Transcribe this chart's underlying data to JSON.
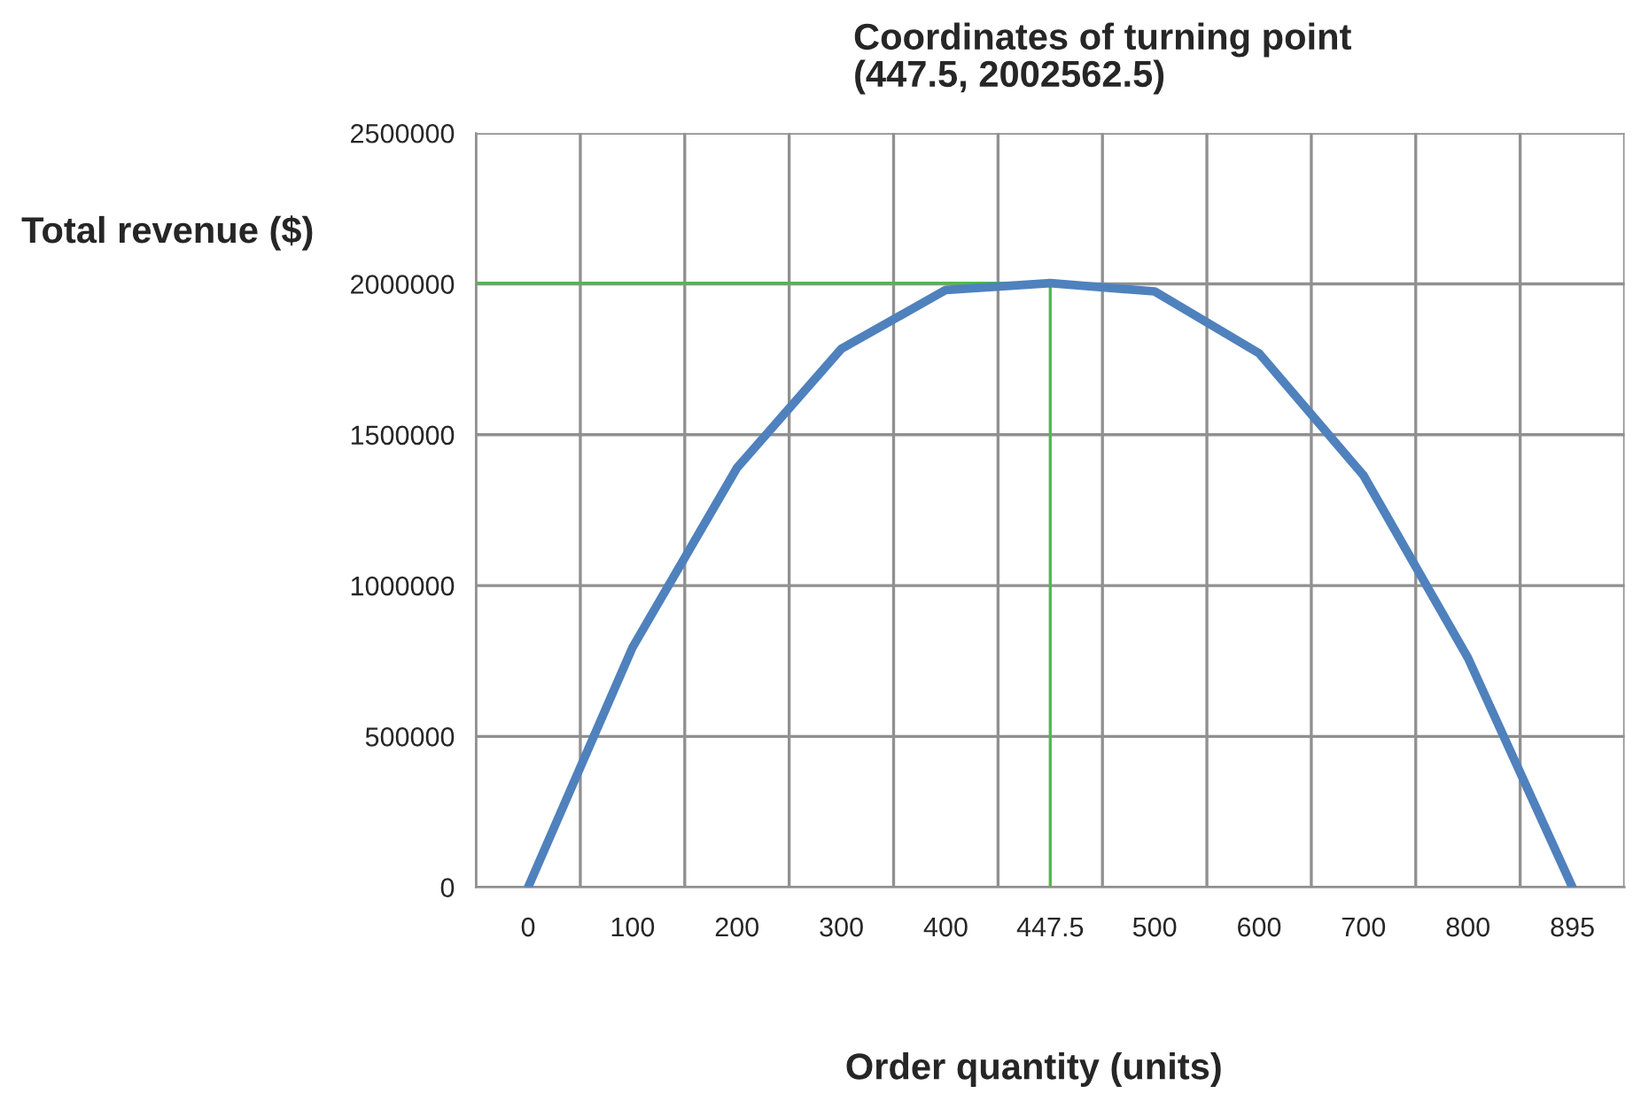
{
  "chart_data": {
    "type": "line",
    "title": "Coordinates of turning point\n(447.5, 2002562.5)",
    "xlabel": "Order quantity (units)",
    "ylabel": "Total revenue ($)",
    "categories": [
      "0",
      "100",
      "200",
      "300",
      "400",
      "447.5",
      "500",
      "600",
      "700",
      "800",
      "895"
    ],
    "series": [
      {
        "color": "#4f81bd",
        "values": [
          0,
          795000,
          1390000,
          1785000,
          1980000,
          2002562.5,
          1975000,
          1770000,
          1365000,
          760000,
          0
        ]
      }
    ],
    "ylim": [
      0,
      2500000
    ],
    "yticks": [
      0,
      500000,
      1000000,
      1500000,
      2000000,
      2500000
    ],
    "grid": true,
    "marker": "none",
    "line_style": "solid",
    "ref_lines": [
      {
        "axis": "x",
        "value": "447.5",
        "color": "#4cbb4c"
      },
      {
        "axis": "y",
        "value": 2002562.5,
        "color": "#4cbb4c"
      }
    ]
  }
}
